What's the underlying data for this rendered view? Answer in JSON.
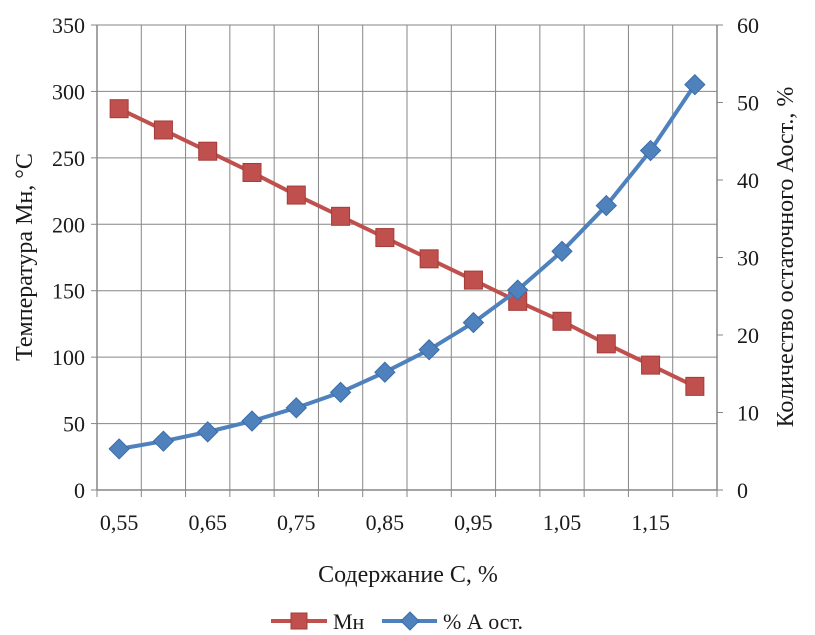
{
  "chart_data": {
    "type": "line",
    "title": "",
    "xlabel": "Содержание С, %",
    "ylabel": "Температура Мн, °С",
    "y2label": "Количество остаточного Аост., %",
    "categories": [
      "0,55",
      "0,6",
      "0,65",
      "0,7",
      "0,75",
      "0,8",
      "0,85",
      "0,9",
      "0,95",
      "1",
      "1,05",
      "1,1",
      "1,15",
      "1,2"
    ],
    "x_tick_labels": [
      "0,55",
      "0,65",
      "0,75",
      "0,85",
      "0,95",
      "1,05",
      "1,15"
    ],
    "ylim": [
      0,
      350
    ],
    "yticks": [
      "0",
      "50",
      "100",
      "150",
      "200",
      "250",
      "300",
      "350"
    ],
    "y2lim": [
      0,
      60
    ],
    "y2ticks": [
      "0",
      "10",
      "20",
      "30",
      "40",
      "50",
      "60"
    ],
    "grid": true,
    "legend_position": "bottom",
    "series": [
      {
        "name": "Мн",
        "axis": "left",
        "marker": "square",
        "color": "#c0504d",
        "values": [
          287,
          271,
          255,
          239,
          222,
          206,
          190,
          174,
          158,
          142,
          127,
          110,
          94,
          78
        ]
      },
      {
        "name": "% А ост.",
        "axis": "right",
        "marker": "diamond",
        "color": "#4f81bd",
        "values": [
          5.3,
          6.3,
          7.5,
          8.9,
          10.6,
          12.6,
          15.2,
          18.1,
          21.6,
          25.8,
          30.8,
          36.7,
          43.8,
          52.3
        ]
      }
    ]
  }
}
